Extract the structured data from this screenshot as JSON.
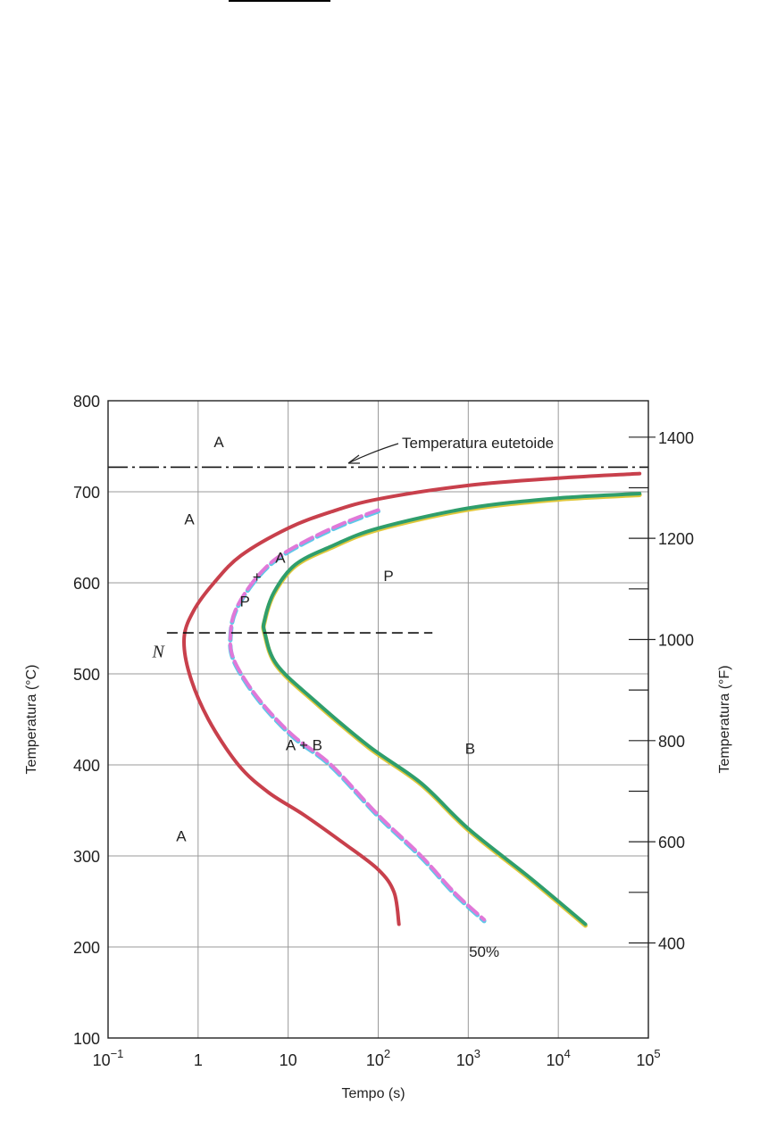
{
  "chart_data": {
    "type": "line",
    "title": "",
    "xlabel": "Tempo (s)",
    "ylabel": "Temperatura (°C)",
    "ylabel_right": "Temperatura (°F)",
    "x_scale": "log",
    "xlim": [
      0.1,
      100000
    ],
    "ylim": [
      100,
      800
    ],
    "grid": true,
    "x_ticks": [
      {
        "value": 0.1,
        "base": "10",
        "exp": "−1"
      },
      {
        "value": 1,
        "base": "1",
        "exp": ""
      },
      {
        "value": 10,
        "base": "10",
        "exp": ""
      },
      {
        "value": 100,
        "base": "10",
        "exp": "2"
      },
      {
        "value": 1000,
        "base": "10",
        "exp": "3"
      },
      {
        "value": 10000,
        "base": "10",
        "exp": "4"
      },
      {
        "value": 100000,
        "base": "10",
        "exp": "5"
      }
    ],
    "y_ticks": [
      100,
      200,
      300,
      400,
      500,
      600,
      700,
      800
    ],
    "y_right_ticks": [
      {
        "F": 400,
        "label": "400"
      },
      {
        "F": 600,
        "label": "600"
      },
      {
        "F": 800,
        "label": "800"
      },
      {
        "F": 1000,
        "label": "1000"
      },
      {
        "F": 1200,
        "label": "1200"
      },
      {
        "F": 1400,
        "label": "1400"
      }
    ],
    "y_right_minor": [
      500,
      700,
      900,
      1100,
      1300
    ],
    "eutectoid": {
      "label": "Temperatura eutetoide",
      "y": 727
    },
    "isotherm": {
      "y": 545,
      "x_start": 0.45,
      "x_end": 400
    },
    "series": [
      {
        "name": "",
        "color": "#c8404c",
        "style": "solid",
        "points": [
          [
            80000,
            720
          ],
          [
            10000,
            715
          ],
          [
            1000,
            707
          ],
          [
            100,
            692
          ],
          [
            30,
            678
          ],
          [
            10,
            660
          ],
          [
            3,
            630
          ],
          [
            1.5,
            600
          ],
          [
            0.9,
            570
          ],
          [
            0.7,
            540
          ],
          [
            0.8,
            500
          ],
          [
            1.3,
            450
          ],
          [
            2.8,
            400
          ],
          [
            6,
            370
          ],
          [
            15,
            345
          ],
          [
            40,
            315
          ],
          [
            100,
            285
          ],
          [
            150,
            260
          ],
          [
            170,
            225
          ]
        ]
      },
      {
        "name": "",
        "color": "#e078d8",
        "shadow": "#5ec8e8",
        "style": "dashed",
        "points": [
          [
            100,
            680
          ],
          [
            40,
            665
          ],
          [
            15,
            645
          ],
          [
            7,
            625
          ],
          [
            4,
            600
          ],
          [
            2.6,
            570
          ],
          [
            2.3,
            545
          ],
          [
            2.4,
            520
          ],
          [
            3.5,
            490
          ],
          [
            6,
            460
          ],
          [
            12,
            430
          ],
          [
            30,
            400
          ],
          [
            100,
            345
          ],
          [
            300,
            300
          ],
          [
            700,
            260
          ],
          [
            1500,
            230
          ]
        ]
      },
      {
        "name": "",
        "color": "#2f9e6c",
        "shadow": "#e0c83c",
        "style": "solid",
        "points": [
          [
            80000,
            698
          ],
          [
            10000,
            693
          ],
          [
            1000,
            682
          ],
          [
            100,
            660
          ],
          [
            30,
            640
          ],
          [
            12,
            620
          ],
          [
            7,
            590
          ],
          [
            5.5,
            560
          ],
          [
            5.5,
            545
          ],
          [
            7.5,
            510
          ],
          [
            20,
            470
          ],
          [
            80,
            420
          ],
          [
            300,
            380
          ],
          [
            1000,
            330
          ],
          [
            5000,
            275
          ],
          [
            20000,
            225
          ]
        ]
      }
    ],
    "labels": [
      {
        "text": "A",
        "x": 1.7,
        "y": 755
      },
      {
        "text": "A",
        "x": 0.8,
        "y": 670
      },
      {
        "text": "A",
        "x": 8.2,
        "y": 628
      },
      {
        "text": "+",
        "x": 4.5,
        "y": 607
      },
      {
        "text": "P",
        "x": 130,
        "y": 608
      },
      {
        "text": "P",
        "x": 3.3,
        "y": 580
      },
      {
        "text": "A + B",
        "x": 15,
        "y": 422
      },
      {
        "text": "B",
        "x": 1050,
        "y": 418
      },
      {
        "text": "A",
        "x": 0.65,
        "y": 322
      },
      {
        "text": "50%",
        "x": 1500,
        "y": 195
      }
    ],
    "n_label": {
      "text": "N",
      "x": 0.3,
      "y": 525
    }
  }
}
